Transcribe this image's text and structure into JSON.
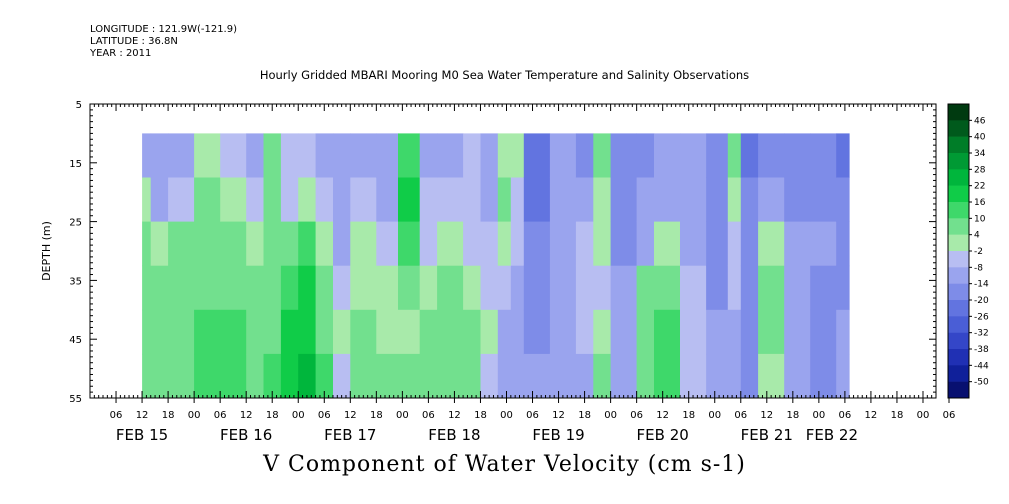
{
  "header": {
    "longitude": "LONGITUDE : 121.9W(-121.9)",
    "latitude": "LATITUDE : 36.8N",
    "year": "YEAR : 2011"
  },
  "chart_data": {
    "type": "heatmap",
    "title": "Hourly Gridded MBARI Mooring M0 Sea Water Temperature and Salinity Observations",
    "colorbar_label": "V Component of Water Velocity (cm s-1)",
    "ylabel": "DEPTH (m)",
    "ylim": [
      55,
      5
    ],
    "y_ticks": [
      "5",
      "15",
      "25",
      "35",
      "45",
      "55"
    ],
    "y_tick_values": [
      5,
      15,
      25,
      35,
      45,
      55
    ],
    "data_depth_range": [
      10,
      55
    ],
    "x_range_hours": [
      0,
      195
    ],
    "data_start_hour": 12,
    "x_hour_ticks": [
      "06",
      "12",
      "18",
      "00",
      "06",
      "12",
      "18",
      "00",
      "06",
      "12",
      "18",
      "00",
      "06",
      "12",
      "18",
      "00",
      "06",
      "12",
      "18",
      "00",
      "06",
      "12",
      "18",
      "00",
      "06",
      "12",
      "18",
      "00",
      "06",
      "12",
      "18",
      "00",
      "06"
    ],
    "x_date_labels": [
      {
        "label": "FEB 15",
        "hour": 12
      },
      {
        "label": "FEB 16",
        "hour": 36
      },
      {
        "label": "FEB 17",
        "hour": 60
      },
      {
        "label": "FEB 18",
        "hour": 84
      },
      {
        "label": "FEB 19",
        "hour": 108
      },
      {
        "label": "FEB 20",
        "hour": 132
      },
      {
        "label": "FEB 21",
        "hour": 156
      },
      {
        "label": "FEB 22",
        "hour": 171
      }
    ],
    "colorbar_levels": [
      "46",
      "40",
      "34",
      "28",
      "22",
      "16",
      "10",
      "4",
      "-2",
      "-8",
      "-14",
      "-20",
      "-26",
      "-32",
      "-38",
      "-44",
      "-50"
    ],
    "colorbar_colors": [
      "#003a10",
      "#005a1c",
      "#007d28",
      "#009a34",
      "#00b63c",
      "#10cc48",
      "#3ed86a",
      "#72e08e",
      "#a8eaaa",
      "#b8bef2",
      "#9aa4ee",
      "#7e8ce8",
      "#6274e0",
      "#4a5ed6",
      "#3446c8",
      "#2030b4",
      "#10209a",
      "#081070"
    ],
    "columns": [
      {
        "h0": 12,
        "h1": 14,
        "profile": [
          -10,
          2,
          6,
          8,
          8,
          6
        ]
      },
      {
        "h0": 14,
        "h1": 18,
        "profile": [
          -12,
          -8,
          3,
          7,
          8,
          7
        ]
      },
      {
        "h0": 18,
        "h1": 24,
        "profile": [
          -10,
          -4,
          6,
          8,
          9,
          10
        ]
      },
      {
        "h0": 24,
        "h1": 30,
        "profile": [
          4,
          6,
          8,
          10,
          12,
          12
        ]
      },
      {
        "h0": 30,
        "h1": 36,
        "profile": [
          -6,
          2,
          8,
          10,
          12,
          12
        ]
      },
      {
        "h0": 36,
        "h1": 40,
        "profile": [
          -10,
          -6,
          2,
          6,
          6,
          8
        ]
      },
      {
        "h0": 40,
        "h1": 44,
        "profile": [
          10,
          8,
          6,
          8,
          10,
          12
        ]
      },
      {
        "h0": 44,
        "h1": 48,
        "profile": [
          -6,
          -4,
          8,
          14,
          18,
          20
        ]
      },
      {
        "h0": 48,
        "h1": 52,
        "profile": [
          -2,
          4,
          12,
          18,
          22,
          24
        ]
      },
      {
        "h0": 52,
        "h1": 56,
        "profile": [
          -8,
          -6,
          0,
          6,
          10,
          12
        ]
      },
      {
        "h0": 56,
        "h1": 60,
        "profile": [
          -12,
          -10,
          -8,
          -4,
          0,
          -2
        ]
      },
      {
        "h0": 60,
        "h1": 66,
        "profile": [
          -10,
          -6,
          2,
          4,
          6,
          6
        ]
      },
      {
        "h0": 66,
        "h1": 71,
        "profile": [
          -10,
          -8,
          -6,
          0,
          4,
          6
        ]
      },
      {
        "h0": 71,
        "h1": 76,
        "profile": [
          12,
          18,
          12,
          8,
          4,
          6
        ]
      },
      {
        "h0": 76,
        "h1": 80,
        "profile": [
          -8,
          -6,
          -4,
          4,
          6,
          8
        ]
      },
      {
        "h0": 80,
        "h1": 86,
        "profile": [
          -8,
          -4,
          4,
          6,
          8,
          10
        ]
      },
      {
        "h0": 86,
        "h1": 90,
        "profile": [
          -6,
          -4,
          -2,
          4,
          6,
          8
        ]
      },
      {
        "h0": 90,
        "h1": 94,
        "profile": [
          -10,
          -8,
          -6,
          -4,
          0,
          -2
        ]
      },
      {
        "h0": 94,
        "h1": 97,
        "profile": [
          4,
          6,
          4,
          -4,
          -8,
          -10
        ]
      },
      {
        "h0": 97,
        "h1": 100,
        "profile": [
          4,
          -4,
          -6,
          -8,
          -10,
          -10
        ]
      },
      {
        "h0": 100,
        "h1": 106,
        "profile": [
          -22,
          -20,
          -18,
          -16,
          -14,
          -12
        ]
      },
      {
        "h0": 106,
        "h1": 112,
        "profile": [
          -10,
          -8,
          -8,
          -10,
          -12,
          -10
        ]
      },
      {
        "h0": 112,
        "h1": 116,
        "profile": [
          -14,
          -10,
          -6,
          -4,
          -6,
          -10
        ]
      },
      {
        "h0": 116,
        "h1": 120,
        "profile": [
          6,
          4,
          0,
          -2,
          4,
          8
        ]
      },
      {
        "h0": 120,
        "h1": 126,
        "profile": [
          -16,
          -16,
          -14,
          -12,
          -10,
          -10
        ]
      },
      {
        "h0": 126,
        "h1": 130,
        "profile": [
          -14,
          -12,
          -8,
          6,
          8,
          10
        ]
      },
      {
        "h0": 130,
        "h1": 136,
        "profile": [
          -12,
          -8,
          2,
          8,
          14,
          16
        ]
      },
      {
        "h0": 136,
        "h1": 142,
        "profile": [
          -12,
          -10,
          -8,
          -6,
          -4,
          -4
        ]
      },
      {
        "h0": 142,
        "h1": 147,
        "profile": [
          -18,
          -16,
          -16,
          -14,
          -12,
          -12
        ]
      },
      {
        "h0": 147,
        "h1": 150,
        "profile": [
          6,
          4,
          -2,
          -6,
          -10,
          -12
        ]
      },
      {
        "h0": 150,
        "h1": 154,
        "profile": [
          -20,
          -18,
          -18,
          -16,
          -16,
          -14
        ]
      },
      {
        "h0": 154,
        "h1": 160,
        "profile": [
          -14,
          -12,
          2,
          6,
          8,
          4
        ]
      },
      {
        "h0": 160,
        "h1": 166,
        "profile": [
          -16,
          -14,
          -12,
          -10,
          -10,
          -12
        ]
      },
      {
        "h0": 166,
        "h1": 172,
        "profile": [
          -14,
          -14,
          -12,
          -14,
          -16,
          -14
        ]
      },
      {
        "h0": 172,
        "h1": 175,
        "profile": [
          -20,
          -18,
          -16,
          -14,
          -12,
          -10
        ]
      }
    ]
  }
}
